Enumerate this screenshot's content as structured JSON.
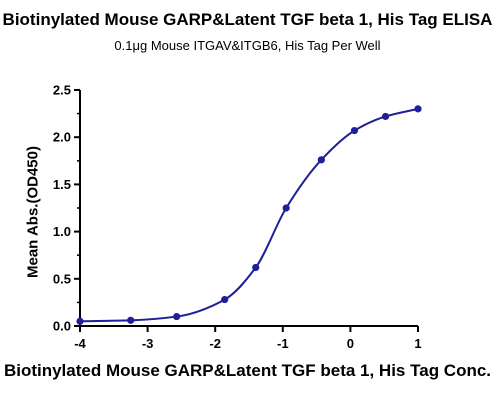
{
  "chart_data": {
    "type": "line",
    "title": "Biotinylated Mouse GARP&Latent TGF beta 1, His Tag ELISA",
    "subtitle": "0.1μg Mouse ITGAV&ITGB6, His Tag Per Well",
    "xlabel": "Biotinylated Mouse GARP&Latent TGF beta 1, His Tag Conc.",
    "ylabel": "Mean Abs.(OD450)",
    "xlim": [
      -4,
      1
    ],
    "ylim": [
      0,
      2.5
    ],
    "xticks": [
      "-4",
      "-3",
      "-2",
      "-1",
      "0",
      "1"
    ],
    "yticks": [
      "0.0",
      "0.5",
      "1.0",
      "1.5",
      "2.0",
      "2.5"
    ],
    "grid": false,
    "series": [
      {
        "color": "#1f1f99",
        "x": [
          -4.0,
          -3.25,
          -2.57,
          -1.86,
          -1.4,
          -0.95,
          -0.43,
          0.06,
          0.52,
          1.0
        ],
        "y": [
          0.05,
          0.06,
          0.1,
          0.28,
          0.62,
          1.25,
          1.76,
          2.07,
          2.22,
          2.3
        ]
      }
    ]
  }
}
